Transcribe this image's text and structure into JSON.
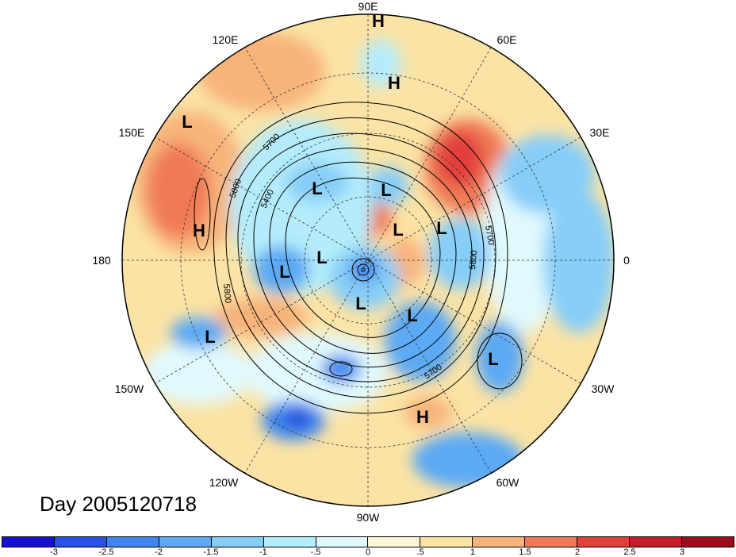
{
  "title": "Day 2005120718",
  "meridian_labels": [
    "90E",
    "60E",
    "30E",
    "0",
    "30W",
    "60W",
    "90W",
    "120W",
    "150W",
    "180",
    "150E",
    "120E"
  ],
  "colorbar": {
    "ticks": [
      "-3",
      "-2.5",
      "-2",
      "-1.5",
      "-1",
      "-.5",
      "0",
      ".5",
      "1",
      "1.5",
      "2",
      "2.5",
      "3"
    ],
    "colors": [
      "#1a0fd0",
      "#2652e6",
      "#3e86ee",
      "#5ca9f4",
      "#86cdf8",
      "#b4ecfb",
      "#e1f9fd",
      "#fdf7d8",
      "#fbe3a5",
      "#f7b47a",
      "#f07a57",
      "#e3403c",
      "#c61c28",
      "#9c0e1e"
    ]
  },
  "systems": [
    {
      "type": "H"
    },
    {
      "type": "H"
    },
    {
      "type": "L"
    },
    {
      "type": "L"
    },
    {
      "type": "L"
    },
    {
      "type": "H"
    },
    {
      "type": "L"
    },
    {
      "type": "L"
    },
    {
      "type": "L"
    },
    {
      "type": "L"
    },
    {
      "type": "L"
    },
    {
      "type": "L"
    },
    {
      "type": "L"
    },
    {
      "type": "L"
    },
    {
      "type": "H"
    }
  ],
  "contour_labels": [
    "5700",
    "5800",
    "5400",
    "5800",
    "5700",
    "5800",
    "5700"
  ]
}
